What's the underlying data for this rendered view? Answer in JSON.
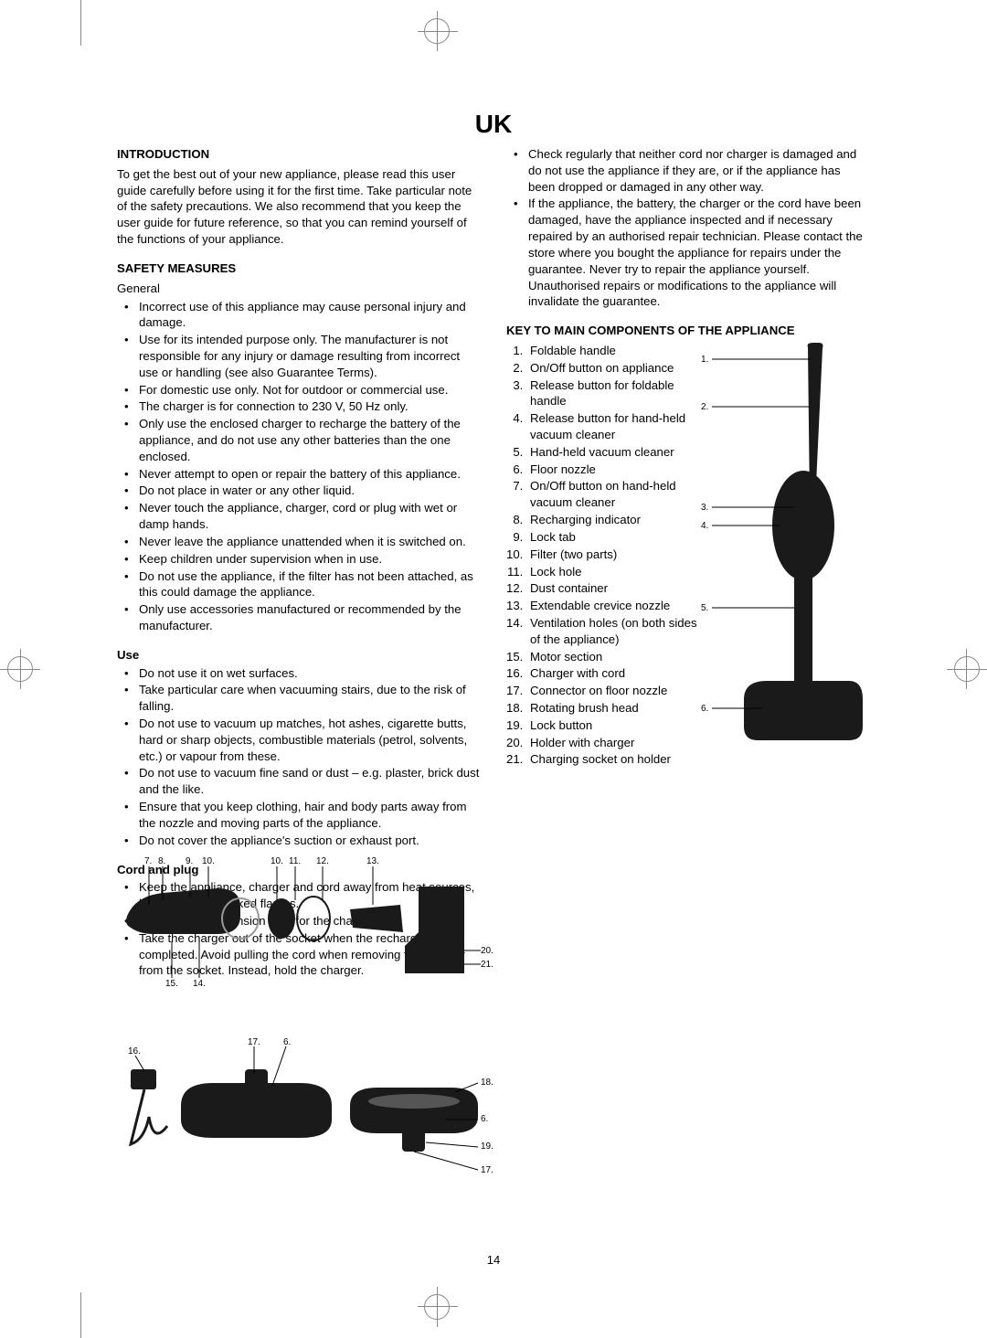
{
  "page_title": "UK",
  "page_number": "14",
  "left_column": {
    "intro": {
      "heading": "INTRODUCTION",
      "text": "To get the best out of your new appliance, please read this user guide carefully before using it for the first time. Take particular note of the safety precautions. We also recommend that you keep the user guide for future reference, so that you can remind yourself of the functions of your appliance."
    },
    "safety": {
      "heading": "SAFETY MEASURES",
      "general_label": "General",
      "general_items": [
        "Incorrect use of this appliance may cause personal injury and damage.",
        "Use for its intended purpose only. The manufacturer is not responsible for any injury or damage resulting from incorrect use or handling (see also Guarantee Terms).",
        "For domestic use only. Not for outdoor or commercial use.",
        "The charger is for connection to 230 V, 50 Hz only.",
        "Only use the enclosed charger to recharge the battery of the appliance, and do not use any other batteries than the one enclosed.",
        "Never attempt to open or repair the battery of this appliance.",
        "Do not place in water or any other liquid.",
        "Never touch the appliance, charger, cord or plug with wet or damp hands.",
        "Never leave the appliance unattended when it is switched on.",
        "Keep children under supervision when in use.",
        "Do not use the appliance, if the filter has not been attached, as this could damage the appliance.",
        "Only use accessories manufactured or recommended by the manufacturer."
      ],
      "use_label": "Use",
      "use_items": [
        "Do not use it on wet surfaces.",
        "Take particular care when vacuuming stairs, due to the risk of falling.",
        "Do not use to vacuum up matches, hot ashes, cigarette butts, hard or sharp objects, combustible materials (petrol, solvents, etc.) or vapour from these.",
        "Do not use to vacuum fine sand or dust – e.g. plaster, brick dust and the like.",
        "Ensure that you keep clothing, hair and body parts away from the nozzle and moving parts of the appliance.",
        "Do not cover the appliance's suction or exhaust port."
      ],
      "cord_label": "Cord and plug",
      "cord_items": [
        "Keep the appliance, charger and cord away from heat sources, hot objects and naked flames.",
        "Never use an extension cord for the charger.",
        "Take the charger out of the socket when the recharging is completed. Avoid pulling the cord when removing the charger from the socket. Instead, hold the charger."
      ]
    }
  },
  "right_column": {
    "cord_cont_items": [
      "Check regularly that neither cord nor charger is damaged and do not use the appliance if they are, or if the appliance has been dropped or damaged in any other way.",
      "If the appliance, the battery, the charger or the cord have been damaged, have the appliance inspected and if necessary repaired by an authorised repair technician. Please contact the store where you bought the appliance for repairs under the guarantee. Never try to repair the appliance yourself. Unauthorised repairs or modifications to the appliance will invalidate the guarantee."
    ],
    "key": {
      "heading": "KEY TO MAIN COMPONENTS OF THE APPLIANCE",
      "items": [
        "Foldable handle",
        "On/Off button on appliance",
        "Release button for foldable handle",
        "Release button for hand-held vacuum cleaner",
        "Hand-held vacuum cleaner",
        "Floor nozzle",
        "On/Off button on hand-held vacuum cleaner",
        "Recharging indicator",
        "Lock tab",
        "Filter (two parts)",
        "Lock hole",
        "Dust container",
        "Extendable crevice nozzle",
        "Ventilation holes (on both sides of the appliance)",
        "Motor section",
        "Charger with cord",
        "Connector on floor nozzle",
        "Rotating brush head",
        "Lock button",
        "Holder with charger",
        "Charging socket on holder"
      ]
    }
  },
  "figures": {
    "main_vacuum_callouts": [
      "1.",
      "2.",
      "3.",
      "4.",
      "5.",
      "6."
    ],
    "handheld_top_callouts": [
      "7.",
      "8.",
      "9.",
      "10.",
      "10.",
      "11.",
      "12.",
      "13."
    ],
    "handheld_bottom_callouts": [
      "14.",
      "15."
    ],
    "holder_callouts": [
      "20.",
      "21."
    ],
    "nozzle_top_callouts": [
      "16.",
      "17.",
      "6."
    ],
    "nozzle_bottom_callouts": [
      "18.",
      "6.",
      "19.",
      "17."
    ]
  },
  "colors": {
    "text": "#000000",
    "background": "#ffffff",
    "diagram_fill": "#1a1a1a",
    "crop_marks": "#888888"
  }
}
